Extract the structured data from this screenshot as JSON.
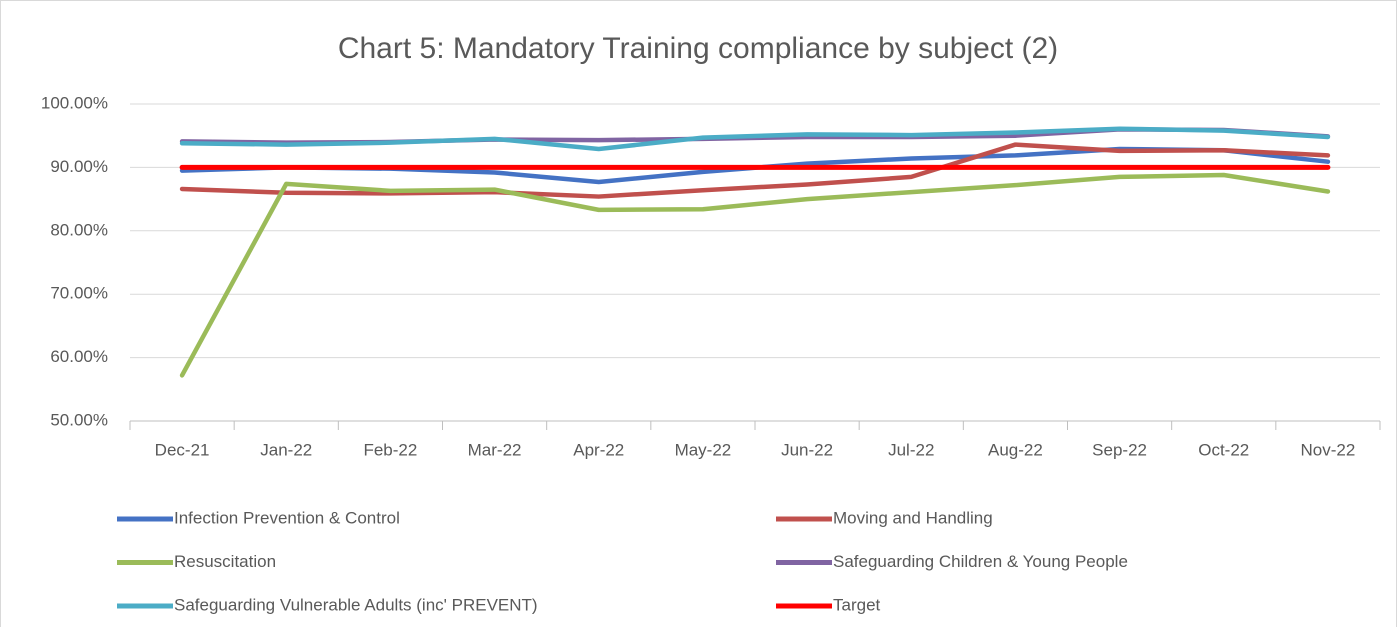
{
  "chart_data": {
    "type": "line",
    "title": "Chart 5: Mandatory Training compliance by subject (2)",
    "categories": [
      "Dec-21",
      "Jan-22",
      "Feb-22",
      "Mar-22",
      "Apr-22",
      "May-22",
      "Jun-22",
      "Jul-22",
      "Aug-22",
      "Sep-22",
      "Oct-22",
      "Nov-22"
    ],
    "series": [
      {
        "name": "Infection Prevention & Control",
        "color": "#4472c4",
        "values": [
          89.5,
          90,
          89.8,
          89.2,
          87.7,
          89.3,
          90.6,
          91.4,
          91.9,
          92.9,
          92.7,
          90.9
        ]
      },
      {
        "name": "Moving and Handling",
        "color": "#c0504d",
        "values": [
          86.6,
          86,
          85.9,
          86.1,
          85.4,
          86.4,
          87.3,
          88.5,
          93.6,
          92.6,
          92.7,
          91.9
        ]
      },
      {
        "name": "Resuscitation",
        "color": "#9bbb59",
        "values": [
          57.2,
          87.4,
          86.3,
          86.5,
          83.3,
          83.4,
          85,
          86.1,
          87.2,
          88.5,
          88.8,
          86.2
        ]
      },
      {
        "name": "Safeguarding Children & Young People",
        "color": "#8064a2",
        "values": [
          94.1,
          93.9,
          94,
          94.4,
          94.3,
          94.5,
          94.8,
          94.8,
          95,
          96,
          95.9,
          94.9
        ]
      },
      {
        "name": "Safeguarding Vulnerable Adults (inc' PREVENT)",
        "color": "#4bacc6",
        "values": [
          93.8,
          93.6,
          93.9,
          94.5,
          92.9,
          94.7,
          95.2,
          95.1,
          95.5,
          96.1,
          95.8,
          94.8
        ]
      },
      {
        "name": "Target",
        "color": "#ff0000",
        "values": [
          90,
          90,
          90,
          90,
          90,
          90,
          90,
          90,
          90,
          90,
          90,
          90
        ]
      }
    ],
    "ylim": [
      50,
      100
    ],
    "yticks": [
      {
        "value": 50,
        "label": "50.00%"
      },
      {
        "value": 60,
        "label": "60.00%"
      },
      {
        "value": 70,
        "label": "70.00%"
      },
      {
        "value": 80,
        "label": "80.00%"
      },
      {
        "value": 90,
        "label": "90.00%"
      },
      {
        "value": 100,
        "label": "100.00%"
      }
    ],
    "grid": true
  }
}
